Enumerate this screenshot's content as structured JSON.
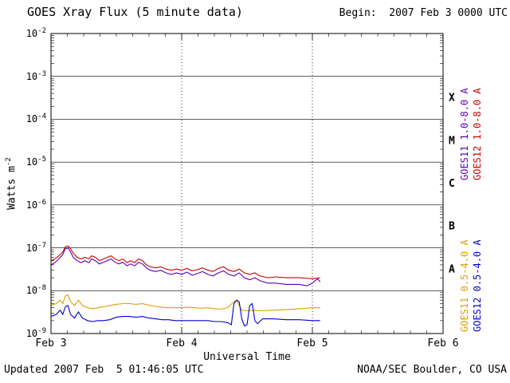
{
  "header": {
    "begin": "Begin:  2007 Feb 3 0000 UTC"
  },
  "footer": {
    "updated": "Updated 2007 Feb  5 01:46:05 UTC",
    "source": "NOAA/SEC Boulder, CO USA"
  },
  "axes": {
    "xlabel": "Universal Time",
    "ylabel_base": "Watts m",
    "ylabel_exp": "-2"
  },
  "chart_data": {
    "type": "line",
    "title": "GOES Xray Flux (5 minute data)",
    "xlabel": "Universal Time",
    "ylabel": "Watts m^-2",
    "x_unit": "days since 2007 Feb 3 0000 UTC",
    "xlim": [
      0,
      3
    ],
    "ylim": [
      1e-09,
      0.01
    ],
    "y_scale": "log",
    "grid": "horizontal solid per decade, vertical dotted per day",
    "y_tick_base": "10",
    "y_ticks": [
      {
        "exp": -2
      },
      {
        "exp": -3
      },
      {
        "exp": -4
      },
      {
        "exp": -5
      },
      {
        "exp": -6
      },
      {
        "exp": -7
      },
      {
        "exp": -8
      },
      {
        "exp": -9
      }
    ],
    "x_ticks": [
      {
        "t": 0,
        "label": "Feb 3"
      },
      {
        "t": 1,
        "label": "Feb 4"
      },
      {
        "t": 2,
        "label": "Feb 5"
      },
      {
        "t": 3,
        "label": "Feb 6"
      }
    ],
    "flare_classes": [
      {
        "label": "X",
        "log_center": -3.5
      },
      {
        "label": "M",
        "log_center": -4.5
      },
      {
        "label": "C",
        "log_center": -5.5
      },
      {
        "label": "B",
        "log_center": -6.5
      },
      {
        "label": "A",
        "log_center": -7.5
      }
    ],
    "series": [
      {
        "name": "GOES11 1.0-8.0 A",
        "color": "#5b00bd",
        "points": [
          [
            0.0,
            4e-08
          ],
          [
            0.03,
            4.5e-08
          ],
          [
            0.06,
            5.5e-08
          ],
          [
            0.09,
            7e-08
          ],
          [
            0.11,
            9.5e-08
          ],
          [
            0.13,
            1e-07
          ],
          [
            0.15,
            8e-08
          ],
          [
            0.17,
            6e-08
          ],
          [
            0.2,
            5e-08
          ],
          [
            0.23,
            4.5e-08
          ],
          [
            0.26,
            5e-08
          ],
          [
            0.29,
            4.5e-08
          ],
          [
            0.31,
            5.5e-08
          ],
          [
            0.34,
            5e-08
          ],
          [
            0.37,
            4.2e-08
          ],
          [
            0.4,
            4.6e-08
          ],
          [
            0.43,
            5e-08
          ],
          [
            0.46,
            5.5e-08
          ],
          [
            0.49,
            4.6e-08
          ],
          [
            0.52,
            4.2e-08
          ],
          [
            0.55,
            4.6e-08
          ],
          [
            0.58,
            3.8e-08
          ],
          [
            0.61,
            4.2e-08
          ],
          [
            0.64,
            3.8e-08
          ],
          [
            0.67,
            4.6e-08
          ],
          [
            0.7,
            4.2e-08
          ],
          [
            0.73,
            3.4e-08
          ],
          [
            0.76,
            3e-08
          ],
          [
            0.8,
            2.8e-08
          ],
          [
            0.84,
            3e-08
          ],
          [
            0.88,
            2.6e-08
          ],
          [
            0.92,
            2.4e-08
          ],
          [
            0.96,
            2.6e-08
          ],
          [
            1.0,
            2.4e-08
          ],
          [
            1.04,
            2.7e-08
          ],
          [
            1.08,
            2.3e-08
          ],
          [
            1.12,
            2.5e-08
          ],
          [
            1.16,
            2.8e-08
          ],
          [
            1.2,
            2.4e-08
          ],
          [
            1.24,
            2.2e-08
          ],
          [
            1.28,
            2.6e-08
          ],
          [
            1.32,
            2.9e-08
          ],
          [
            1.36,
            2.4e-08
          ],
          [
            1.4,
            2.2e-08
          ],
          [
            1.44,
            2.6e-08
          ],
          [
            1.48,
            2e-08
          ],
          [
            1.52,
            1.8e-08
          ],
          [
            1.56,
            2e-08
          ],
          [
            1.6,
            1.7e-08
          ],
          [
            1.66,
            1.5e-08
          ],
          [
            1.72,
            1.5e-08
          ],
          [
            1.8,
            1.4e-08
          ],
          [
            1.9,
            1.4e-08
          ],
          [
            1.96,
            1.3e-08
          ],
          [
            2.0,
            1.5e-08
          ],
          [
            2.04,
            1.9e-08
          ],
          [
            2.06,
            1.6e-08
          ]
        ]
      },
      {
        "name": "GOES12 1.0-8.0 A",
        "color": "#cc0000",
        "points": [
          [
            0.0,
            5e-08
          ],
          [
            0.03,
            5.5e-08
          ],
          [
            0.06,
            6.5e-08
          ],
          [
            0.09,
            8e-08
          ],
          [
            0.11,
            1.05e-07
          ],
          [
            0.13,
            1.1e-07
          ],
          [
            0.15,
            9.5e-08
          ],
          [
            0.17,
            7.5e-08
          ],
          [
            0.2,
            6e-08
          ],
          [
            0.23,
            5.5e-08
          ],
          [
            0.26,
            6e-08
          ],
          [
            0.29,
            5.5e-08
          ],
          [
            0.31,
            6.5e-08
          ],
          [
            0.34,
            6e-08
          ],
          [
            0.37,
            5e-08
          ],
          [
            0.4,
            5.5e-08
          ],
          [
            0.43,
            6e-08
          ],
          [
            0.46,
            6.5e-08
          ],
          [
            0.49,
            5.5e-08
          ],
          [
            0.52,
            5e-08
          ],
          [
            0.55,
            5.5e-08
          ],
          [
            0.58,
            4.5e-08
          ],
          [
            0.61,
            5e-08
          ],
          [
            0.64,
            4.5e-08
          ],
          [
            0.67,
            5.5e-08
          ],
          [
            0.7,
            5e-08
          ],
          [
            0.73,
            4e-08
          ],
          [
            0.76,
            3.6e-08
          ],
          [
            0.8,
            3.4e-08
          ],
          [
            0.84,
            3.6e-08
          ],
          [
            0.88,
            3.2e-08
          ],
          [
            0.92,
            3e-08
          ],
          [
            0.96,
            3.2e-08
          ],
          [
            1.0,
            3e-08
          ],
          [
            1.04,
            3.3e-08
          ],
          [
            1.08,
            2.9e-08
          ],
          [
            1.12,
            3.1e-08
          ],
          [
            1.16,
            3.4e-08
          ],
          [
            1.2,
            3e-08
          ],
          [
            1.24,
            2.8e-08
          ],
          [
            1.28,
            3.3e-08
          ],
          [
            1.32,
            3.6e-08
          ],
          [
            1.36,
            3e-08
          ],
          [
            1.4,
            2.8e-08
          ],
          [
            1.44,
            3.2e-08
          ],
          [
            1.48,
            2.6e-08
          ],
          [
            1.52,
            2.4e-08
          ],
          [
            1.56,
            2.6e-08
          ],
          [
            1.6,
            2.2e-08
          ],
          [
            1.66,
            2e-08
          ],
          [
            1.72,
            2.1e-08
          ],
          [
            1.8,
            2e-08
          ],
          [
            1.9,
            2e-08
          ],
          [
            2.0,
            1.9e-08
          ],
          [
            2.06,
            2e-08
          ]
        ]
      },
      {
        "name": "GOES11 0.5-4.0 A",
        "color": "#dda000",
        "points": [
          [
            0.0,
            4.5e-09
          ],
          [
            0.04,
            5e-09
          ],
          [
            0.07,
            6e-09
          ],
          [
            0.09,
            5e-09
          ],
          [
            0.11,
            7.5e-09
          ],
          [
            0.13,
            8e-09
          ],
          [
            0.15,
            5.5e-09
          ],
          [
            0.18,
            4.5e-09
          ],
          [
            0.21,
            6e-09
          ],
          [
            0.24,
            4.5e-09
          ],
          [
            0.28,
            4e-09
          ],
          [
            0.32,
            3.8e-09
          ],
          [
            0.36,
            4e-09
          ],
          [
            0.4,
            4.2e-09
          ],
          [
            0.45,
            4.5e-09
          ],
          [
            0.5,
            4.8e-09
          ],
          [
            0.55,
            5e-09
          ],
          [
            0.6,
            5e-09
          ],
          [
            0.65,
            4.8e-09
          ],
          [
            0.7,
            5e-09
          ],
          [
            0.75,
            4.6e-09
          ],
          [
            0.8,
            4.3e-09
          ],
          [
            0.85,
            4.1e-09
          ],
          [
            0.9,
            4e-09
          ],
          [
            0.95,
            4e-09
          ],
          [
            1.0,
            4e-09
          ],
          [
            1.05,
            4.1e-09
          ],
          [
            1.1,
            4e-09
          ],
          [
            1.15,
            3.9e-09
          ],
          [
            1.2,
            4e-09
          ],
          [
            1.25,
            3.8e-09
          ],
          [
            1.3,
            3.7e-09
          ],
          [
            1.35,
            4e-09
          ],
          [
            1.4,
            5.5e-09
          ],
          [
            1.42,
            6e-09
          ],
          [
            1.44,
            4.5e-09
          ],
          [
            1.46,
            3.5e-09
          ],
          [
            1.5,
            3.4e-09
          ],
          [
            1.55,
            3.5e-09
          ],
          [
            1.6,
            3.4e-09
          ],
          [
            1.7,
            3.5e-09
          ],
          [
            1.8,
            3.6e-09
          ],
          [
            1.9,
            3.8e-09
          ],
          [
            2.0,
            4e-09
          ],
          [
            2.06,
            4e-09
          ]
        ]
      },
      {
        "name": "GOES12 0.5-4.0 A",
        "color": "#0000cc",
        "points": [
          [
            0.0,
            2.5e-09
          ],
          [
            0.04,
            2.8e-09
          ],
          [
            0.07,
            3.5e-09
          ],
          [
            0.09,
            2.8e-09
          ],
          [
            0.11,
            4.2e-09
          ],
          [
            0.13,
            4.5e-09
          ],
          [
            0.15,
            2.8e-09
          ],
          [
            0.18,
            2.3e-09
          ],
          [
            0.21,
            3.2e-09
          ],
          [
            0.24,
            2.3e-09
          ],
          [
            0.28,
            2e-09
          ],
          [
            0.32,
            1.9e-09
          ],
          [
            0.36,
            2e-09
          ],
          [
            0.4,
            2e-09
          ],
          [
            0.45,
            2.1e-09
          ],
          [
            0.5,
            2.4e-09
          ],
          [
            0.55,
            2.5e-09
          ],
          [
            0.6,
            2.5e-09
          ],
          [
            0.65,
            2.4e-09
          ],
          [
            0.7,
            2.5e-09
          ],
          [
            0.75,
            2.3e-09
          ],
          [
            0.8,
            2.2e-09
          ],
          [
            0.85,
            2.1e-09
          ],
          [
            0.9,
            2.1e-09
          ],
          [
            0.95,
            2e-09
          ],
          [
            1.0,
            2e-09
          ],
          [
            1.05,
            2e-09
          ],
          [
            1.1,
            2e-09
          ],
          [
            1.15,
            2e-09
          ],
          [
            1.2,
            2e-09
          ],
          [
            1.25,
            1.9e-09
          ],
          [
            1.3,
            1.9e-09
          ],
          [
            1.35,
            1.8e-09
          ],
          [
            1.38,
            1.6e-09
          ],
          [
            1.4,
            5e-09
          ],
          [
            1.42,
            6e-09
          ],
          [
            1.44,
            5.5e-09
          ],
          [
            1.46,
            2.2e-09
          ],
          [
            1.48,
            1.5e-09
          ],
          [
            1.5,
            1.6e-09
          ],
          [
            1.52,
            4.5e-09
          ],
          [
            1.54,
            5e-09
          ],
          [
            1.56,
            2e-09
          ],
          [
            1.58,
            1.7e-09
          ],
          [
            1.62,
            2.2e-09
          ],
          [
            1.7,
            2.2e-09
          ],
          [
            1.8,
            2.1e-09
          ],
          [
            1.9,
            2.1e-09
          ],
          [
            2.0,
            2e-09
          ],
          [
            2.06,
            2e-09
          ]
        ]
      }
    ]
  }
}
